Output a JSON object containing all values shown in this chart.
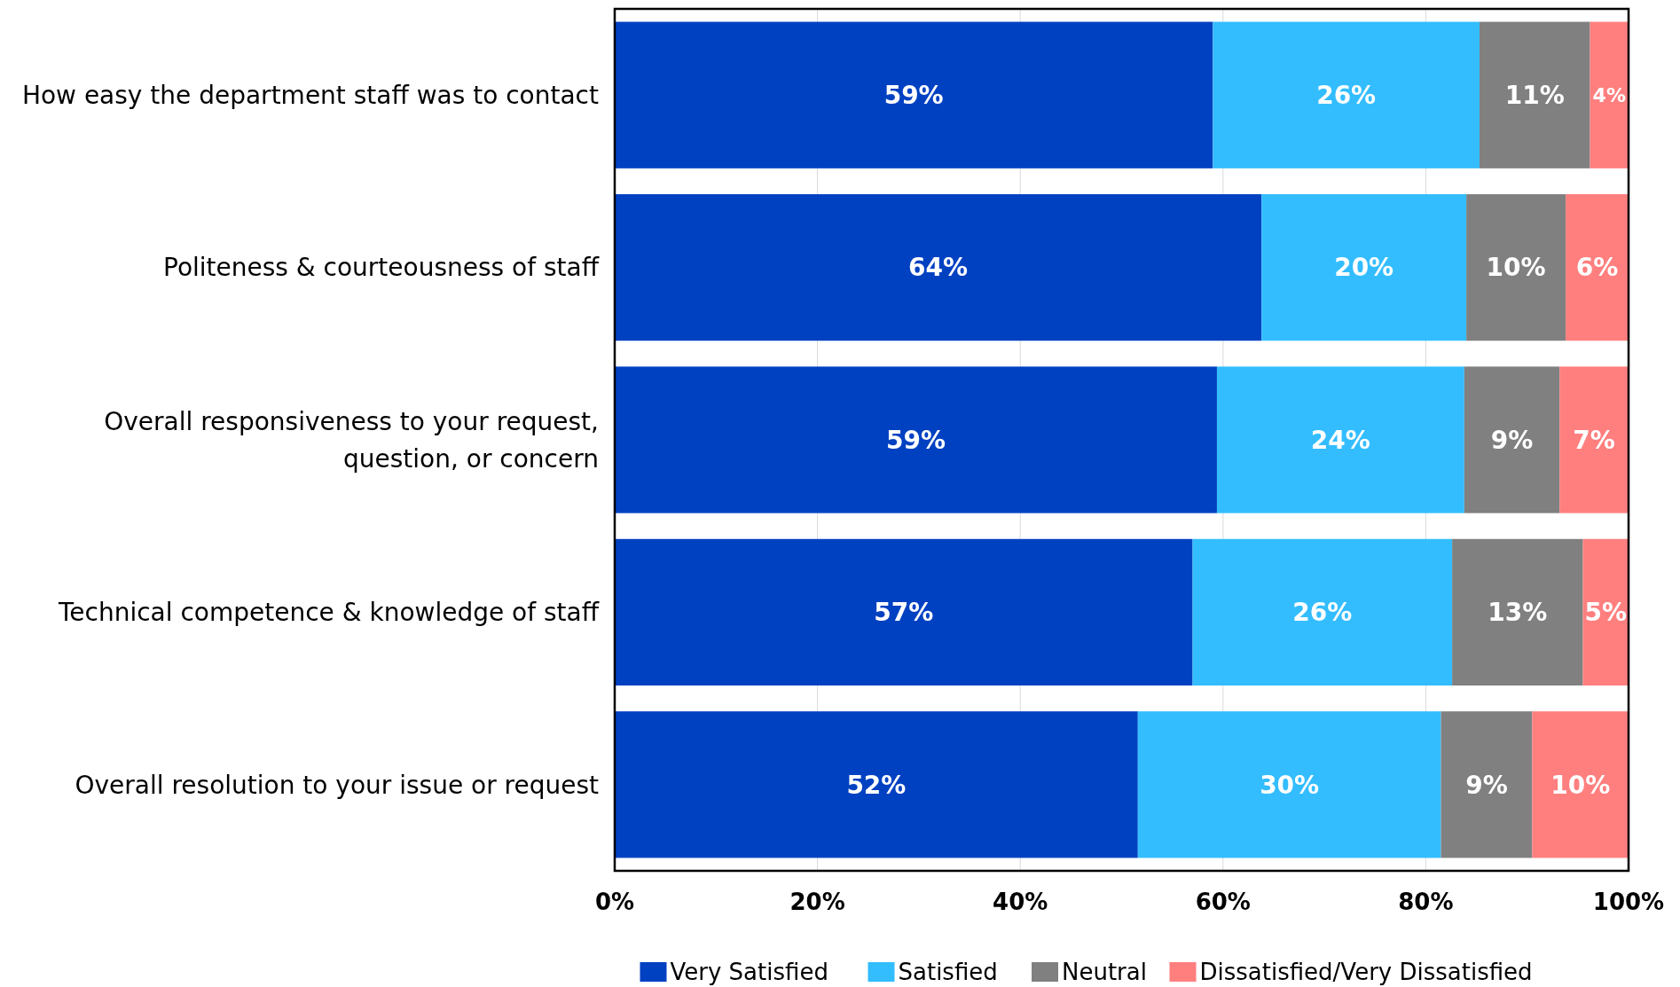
{
  "chart_data": {
    "type": "bar",
    "orientation": "horizontal",
    "stacked": true,
    "categories": [
      "How easy the department staff was to contact",
      "Politeness & courteousness of staff",
      "Overall responsiveness to your request, question, or concern",
      "Technical competence & knowledge of staff",
      "Overall resolution to your issue or request"
    ],
    "series": [
      {
        "name": "Very Satisfied",
        "color": "#0041c2",
        "values": [
          59.0,
          63.8,
          59.4,
          57.0,
          51.6
        ],
        "value_labels": [
          "59%",
          "64%",
          "59%",
          "57%",
          "52%"
        ]
      },
      {
        "name": "Satisfied",
        "color": "#33bdff",
        "values": [
          26.3,
          20.2,
          24.4,
          25.6,
          29.9
        ],
        "value_labels": [
          "26%",
          "20%",
          "24%",
          "26%",
          "30%"
        ]
      },
      {
        "name": "Neutral",
        "color": "#808080",
        "values": [
          10.9,
          9.8,
          9.4,
          12.9,
          9.0
        ],
        "value_labels": [
          "11%",
          "10%",
          "9%",
          "13%",
          "9%"
        ]
      },
      {
        "name": "Dissatisfied/Very Dissatisfied",
        "color": "#ff7f7f",
        "values": [
          3.8,
          6.2,
          6.8,
          4.5,
          9.5
        ],
        "value_labels": [
          "4%",
          "6%",
          "7%",
          "5%",
          "10%"
        ]
      }
    ],
    "xlim": [
      0,
      100
    ],
    "xticks": [
      {
        "value": 0,
        "label": "0%"
      },
      {
        "value": 20,
        "label": "20%"
      },
      {
        "value": 40,
        "label": "40%"
      },
      {
        "value": 60,
        "label": "60%"
      },
      {
        "value": 80,
        "label": "80%"
      },
      {
        "value": 100,
        "label": "100%"
      }
    ],
    "grid": "x",
    "legend": "bottom"
  }
}
